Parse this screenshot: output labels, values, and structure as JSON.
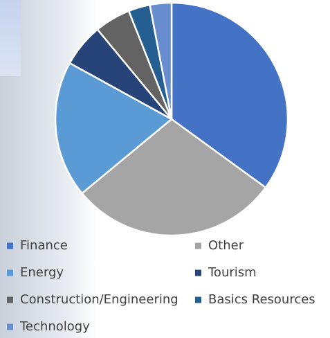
{
  "chart_data": {
    "type": "pie",
    "categories": [
      "Finance",
      "Other",
      "Energy",
      "Tourism",
      "Construction/Engineering",
      "Basics Resources",
      "Technology"
    ],
    "values": [
      35,
      29,
      19,
      6,
      5,
      3,
      3
    ],
    "colors": [
      "#4472c4",
      "#a5a5a5",
      "#5b9bd5",
      "#264478",
      "#636363",
      "#255e91",
      "#698ed0"
    ]
  }
}
